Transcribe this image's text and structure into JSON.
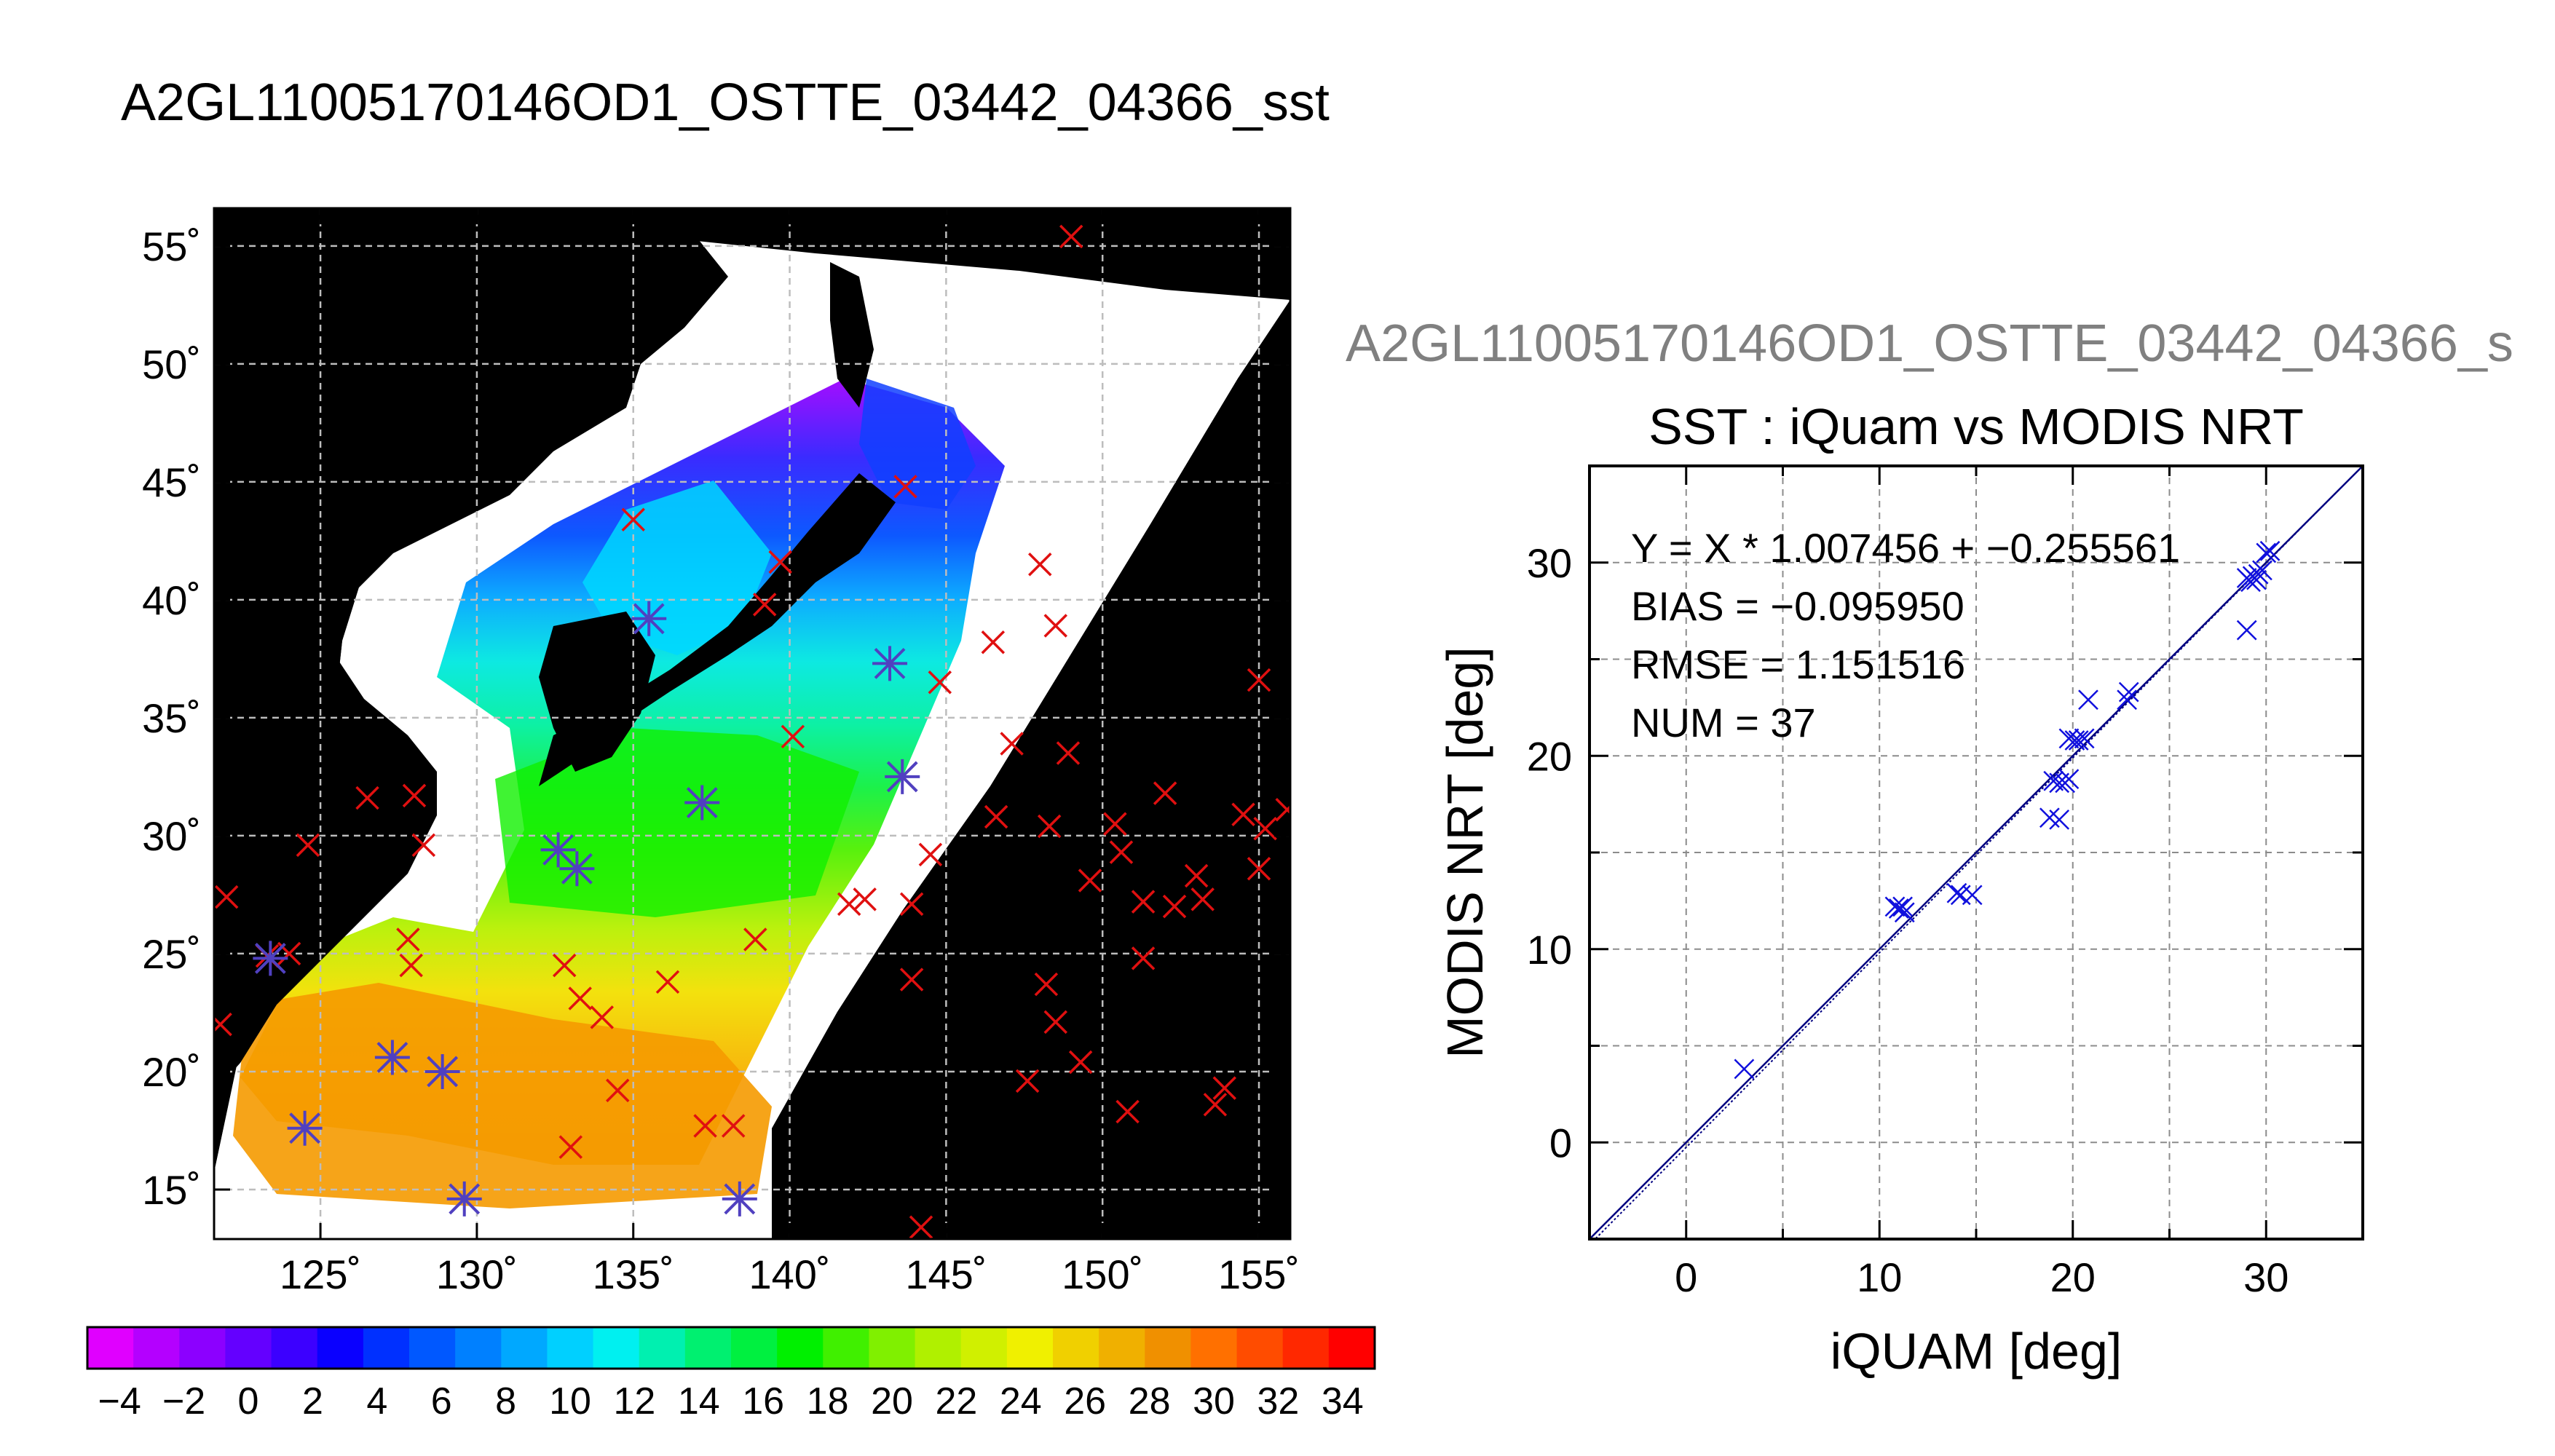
{
  "figure_title": "A2GL11005170146OD1_OSTTE_03442_04366_sst",
  "chart_data": [
    {
      "type": "map",
      "lat_ticks": [
        "15˚",
        "20˚",
        "25˚",
        "30˚",
        "35˚",
        "40˚",
        "45˚",
        "50˚",
        "55˚"
      ],
      "lon_ticks": [
        "125˚",
        "130˚",
        "135˚",
        "140˚",
        "145˚",
        "150˚",
        "155˚"
      ],
      "xlim": [
        121.6,
        156.0
      ],
      "ylim": [
        12.9,
        56.6
      ],
      "colorbar": {
        "tick_labels": [
          "−4",
          "−2",
          "0",
          "2",
          "4",
          "6",
          "8",
          "10",
          "12",
          "14",
          "16",
          "18",
          "20",
          "22",
          "24",
          "26",
          "28",
          "30",
          "32",
          "34"
        ],
        "range": [
          -5,
          35
        ],
        "colors": [
          "#e000ff",
          "#b400ff",
          "#8c00ff",
          "#6400ff",
          "#3c00ff",
          "#0a00ff",
          "#0030ff",
          "#0058ff",
          "#0080ff",
          "#00a8ff",
          "#00d0ff",
          "#00f0f0",
          "#00f0b0",
          "#00f070",
          "#00f040",
          "#00f000",
          "#40f000",
          "#80f000",
          "#b0f000",
          "#d0f000",
          "#f0f000",
          "#f0d000",
          "#f0b000",
          "#f09000",
          "#ff7000",
          "#ff4c00",
          "#ff2800",
          "#ff0000"
        ]
      },
      "insitu_points": [
        [
          122.0,
          27.4
        ],
        [
          121.8,
          22.0
        ],
        [
          123.3,
          24.9
        ],
        [
          124.0,
          25.0
        ],
        [
          124.6,
          29.6
        ],
        [
          124.5,
          17.6
        ],
        [
          126.5,
          31.6
        ],
        [
          128.0,
          31.7
        ],
        [
          127.3,
          20.6
        ],
        [
          128.9,
          20.0
        ],
        [
          127.8,
          25.6
        ],
        [
          127.9,
          24.5
        ],
        [
          128.3,
          29.6
        ],
        [
          129.6,
          14.6
        ],
        [
          132.6,
          29.4
        ],
        [
          133.2,
          28.6
        ],
        [
          132.8,
          24.5
        ],
        [
          133.3,
          23.1
        ],
        [
          134.0,
          22.3
        ],
        [
          134.5,
          19.2
        ],
        [
          133.0,
          16.8
        ],
        [
          135.0,
          43.4
        ],
        [
          135.5,
          39.2
        ],
        [
          137.2,
          31.4
        ],
        [
          136.1,
          23.8
        ],
        [
          138.4,
          14.6
        ],
        [
          137.3,
          17.7
        ],
        [
          138.2,
          17.7
        ],
        [
          138.9,
          25.6
        ],
        [
          139.2,
          39.8
        ],
        [
          139.7,
          41.6
        ],
        [
          140.1,
          34.2
        ],
        [
          141.9,
          27.1
        ],
        [
          142.4,
          27.3
        ],
        [
          143.2,
          37.3
        ],
        [
          143.6,
          32.5
        ],
        [
          143.9,
          27.1
        ],
        [
          143.9,
          23.9
        ],
        [
          144.5,
          29.2
        ],
        [
          144.2,
          13.4
        ],
        [
          144.8,
          36.5
        ],
        [
          143.7,
          44.8
        ],
        [
          146.5,
          38.2
        ],
        [
          147.1,
          33.9
        ],
        [
          146.6,
          30.8
        ],
        [
          147.6,
          19.6
        ],
        [
          148.0,
          41.5
        ],
        [
          148.5,
          38.9
        ],
        [
          148.3,
          30.4
        ],
        [
          148.2,
          23.7
        ],
        [
          148.5,
          22.1
        ],
        [
          148.9,
          33.5
        ],
        [
          149.0,
          55.4
        ],
        [
          149.6,
          28.1
        ],
        [
          149.3,
          20.4
        ],
        [
          150.4,
          30.5
        ],
        [
          150.6,
          29.3
        ],
        [
          150.8,
          18.3
        ],
        [
          151.3,
          27.2
        ],
        [
          151.3,
          24.8
        ],
        [
          152.0,
          31.8
        ],
        [
          152.3,
          27.0
        ],
        [
          153.0,
          28.3
        ],
        [
          153.2,
          27.3
        ],
        [
          153.6,
          18.6
        ],
        [
          153.9,
          19.3
        ],
        [
          154.5,
          30.9
        ],
        [
          155.0,
          36.6
        ],
        [
          155.0,
          28.6
        ],
        [
          155.2,
          30.3
        ],
        [
          155.9,
          31.1
        ]
      ],
      "matched_points": [
        [
          124.5,
          17.6
        ],
        [
          127.3,
          20.6
        ],
        [
          128.9,
          20.0
        ],
        [
          129.6,
          14.6
        ],
        [
          132.6,
          29.4
        ],
        [
          133.2,
          28.6
        ],
        [
          135.5,
          39.2
        ],
        [
          137.2,
          31.4
        ],
        [
          138.4,
          14.6
        ],
        [
          143.2,
          37.3
        ],
        [
          143.6,
          32.5
        ],
        [
          123.4,
          24.8
        ]
      ],
      "colors": {
        "insitu": "#e01010",
        "matched": "#5040c0"
      }
    },
    {
      "type": "scatter",
      "file_label": "A2GL11005170146OD1_OSTTE_03442_04366_s",
      "title": "SST : iQuam vs MODIS NRT",
      "xlabel": "iQUAM [deg]",
      "ylabel": "MODIS NRT [deg]",
      "xlim": [
        -5,
        35
      ],
      "ylim": [
        -5,
        35
      ],
      "xticks": [
        "0",
        "10",
        "20",
        "30"
      ],
      "yticks": [
        "0",
        "10",
        "20",
        "30"
      ],
      "stats": [
        "Y = X * 1.007456 + −0.255561",
        "BIAS = −0.095950",
        "RMSE = 1.151516",
        "NUM = 37"
      ],
      "fit": {
        "slope": 1.007456,
        "intercept": -0.255561
      },
      "points": [
        [
          3.0,
          3.8
        ],
        [
          10.8,
          12.2
        ],
        [
          11.0,
          12.1
        ],
        [
          11.2,
          12.2
        ],
        [
          11.3,
          11.9
        ],
        [
          14.0,
          12.9
        ],
        [
          14.2,
          12.8
        ],
        [
          14.8,
          12.8
        ],
        [
          18.8,
          16.8
        ],
        [
          19.3,
          16.7
        ],
        [
          19.0,
          18.7
        ],
        [
          19.3,
          18.6
        ],
        [
          19.6,
          18.6
        ],
        [
          19.8,
          18.8
        ],
        [
          19.8,
          20.9
        ],
        [
          20.1,
          20.8
        ],
        [
          20.3,
          20.8
        ],
        [
          20.6,
          20.9
        ],
        [
          20.8,
          22.9
        ],
        [
          22.8,
          22.9
        ],
        [
          22.9,
          23.3
        ],
        [
          29.0,
          26.5
        ],
        [
          29.0,
          29.2
        ],
        [
          29.2,
          29.0
        ],
        [
          29.3,
          29.3
        ],
        [
          29.5,
          29.1
        ],
        [
          29.6,
          29.4
        ],
        [
          29.8,
          29.6
        ],
        [
          30.0,
          30.5
        ],
        [
          30.2,
          30.6
        ]
      ],
      "color": "#1010dd"
    }
  ]
}
